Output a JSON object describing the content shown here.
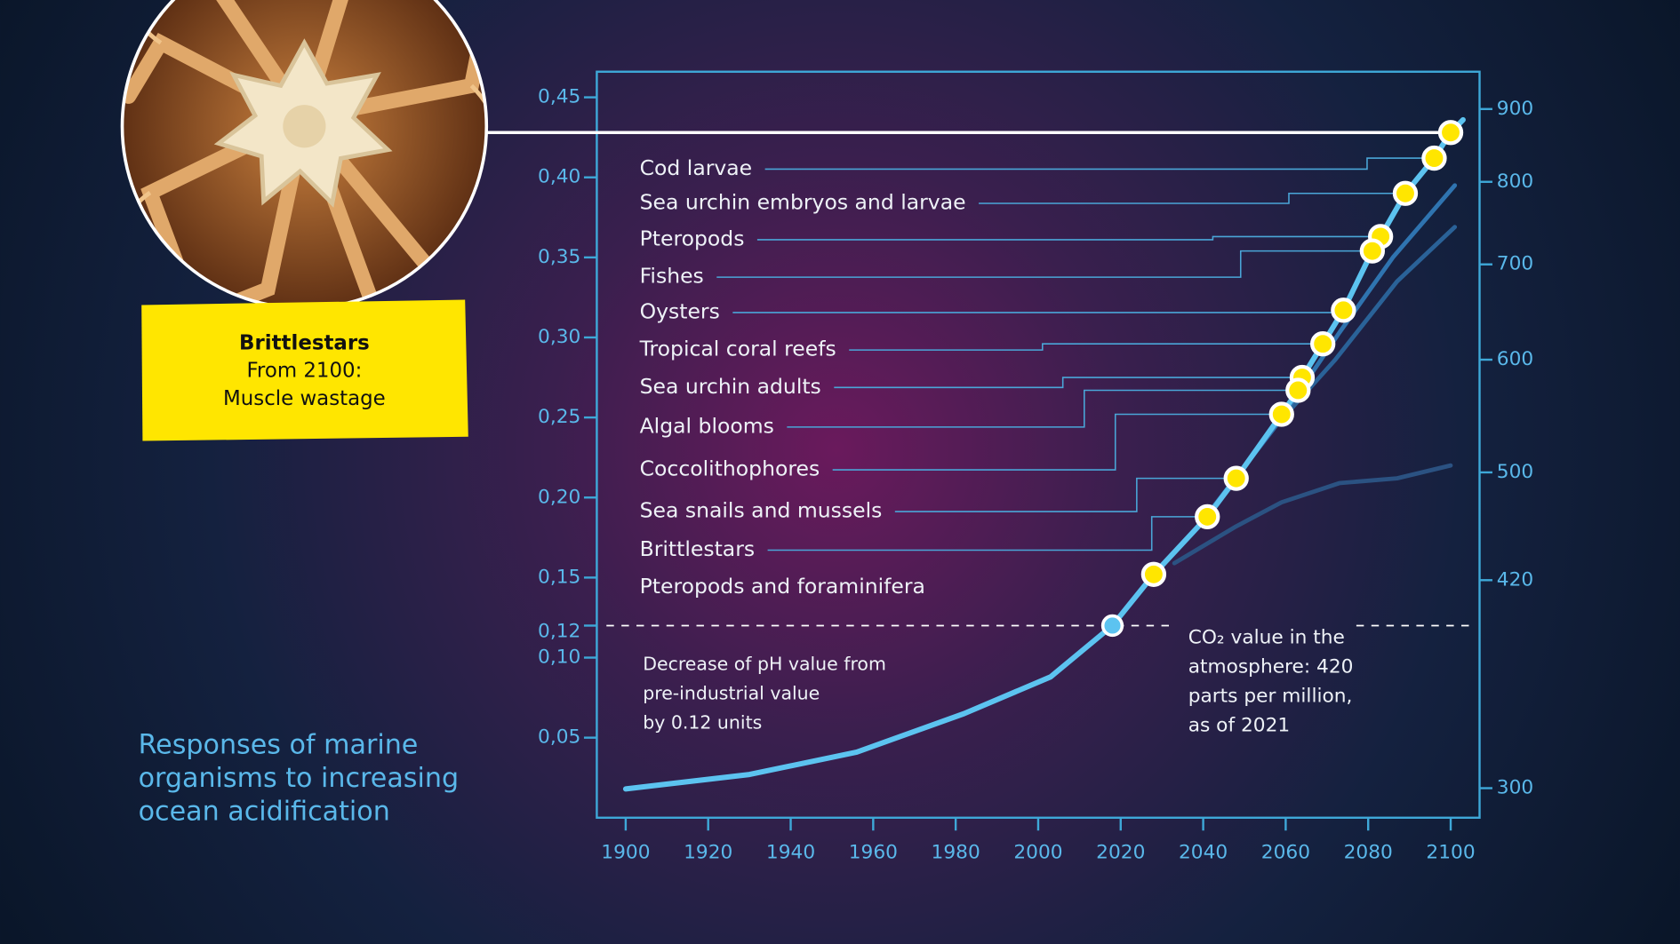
{
  "chart_data": {
    "type": "line",
    "title": [
      "Responses of marine",
      "organisms to increasing",
      "ocean acidification"
    ],
    "xlim": [
      1893,
      2107
    ],
    "xticks": [
      1900,
      1920,
      1940,
      1960,
      1980,
      2000,
      2020,
      2040,
      2060,
      2080,
      2100
    ],
    "ylim": [
      0,
      0.466
    ],
    "yticks": [
      {
        "value": 0.05,
        "label": "0,05"
      },
      {
        "value": 0.1,
        "label": "0,10"
      },
      {
        "value": 0.12,
        "label": "0,12"
      },
      {
        "value": 0.15,
        "label": "0,15"
      },
      {
        "value": 0.2,
        "label": "0,20"
      },
      {
        "value": 0.25,
        "label": "0,25"
      },
      {
        "value": 0.3,
        "label": "0,30"
      },
      {
        "value": 0.35,
        "label": "0,35"
      },
      {
        "value": 0.4,
        "label": "0,40"
      },
      {
        "value": 0.45,
        "label": "0,45"
      }
    ],
    "y2scale": "log",
    "y2lim": [
      286,
      956
    ],
    "y2ticks": [
      300,
      420,
      500,
      600,
      700,
      800,
      900
    ],
    "series": [
      {
        "color": "#5cc3f0",
        "x": [
          1900,
          1930,
          1956,
          1982,
          2003,
          2018,
          2028,
          2041,
          2048,
          2059,
          2063,
          2064,
          2069,
          2074,
          2081,
          2083,
          2089,
          2096,
          2100,
          2103
        ],
        "values": [
          0.018,
          0.027,
          0.041,
          0.065,
          0.088,
          0.12,
          0.152,
          0.188,
          0.212,
          0.252,
          0.267,
          0.275,
          0.296,
          0.317,
          0.354,
          0.363,
          0.39,
          0.412,
          0.428,
          0.436
        ]
      },
      {
        "color": "#2f74b0",
        "x": [
          2040,
          2058,
          2073,
          2086,
          2101
        ],
        "values": [
          0.186,
          0.246,
          0.303,
          0.35,
          0.395
        ]
      },
      {
        "color": "#2a6298",
        "x": [
          2057,
          2072,
          2087,
          2101
        ],
        "values": [
          0.243,
          0.286,
          0.335,
          0.369
        ]
      },
      {
        "color": "#2b5282",
        "x": [
          2033,
          2048,
          2059,
          2073,
          2087,
          2100
        ],
        "values": [
          0.159,
          0.182,
          0.197,
          0.209,
          0.212,
          0.22
        ]
      }
    ],
    "marker": {
      "x": 2018,
      "y": 0.12,
      "color": "#5cc3f0"
    },
    "points_color": "#ffe600",
    "points": [
      {
        "label": "Cod larvae",
        "x": 2096,
        "y": 0.412
      },
      {
        "label": "Sea urchin embryos and larvae",
        "x": 2089,
        "y": 0.39
      },
      {
        "label": "Pteropods",
        "x": 2083,
        "y": 0.363
      },
      {
        "label": "Fishes",
        "x": 2081,
        "y": 0.354
      },
      {
        "label": "Oysters",
        "x": 2074,
        "y": 0.317
      },
      {
        "label": "Tropical coral reefs",
        "x": 2069,
        "y": 0.296
      },
      {
        "label": "Sea urchin adults",
        "x": 2064,
        "y": 0.275
      },
      {
        "label": "Algal blooms",
        "x": 2063,
        "y": 0.267
      },
      {
        "label": "Coccolithophores",
        "x": 2059,
        "y": 0.252
      },
      {
        "label": "Sea snails and mussels",
        "x": 2048,
        "y": 0.212
      },
      {
        "label": "Brittlestars",
        "x": 2041,
        "y": 0.188
      },
      {
        "label": "Pteropods and foraminifera",
        "x": 2028,
        "y": 0.152
      }
    ],
    "callout": {
      "lines": [
        "Brittlestars",
        "From 2100:",
        "Muscle wastage"
      ],
      "x": 2100,
      "y": 0.428
    },
    "annotations": [
      [
        "Decrease of pH value from",
        "pre-industrial value",
        "by 0.12 units"
      ],
      [
        "CO₂ value in the",
        "atmosphere: 420",
        "parts per million,",
        "as of 2021"
      ]
    ]
  }
}
